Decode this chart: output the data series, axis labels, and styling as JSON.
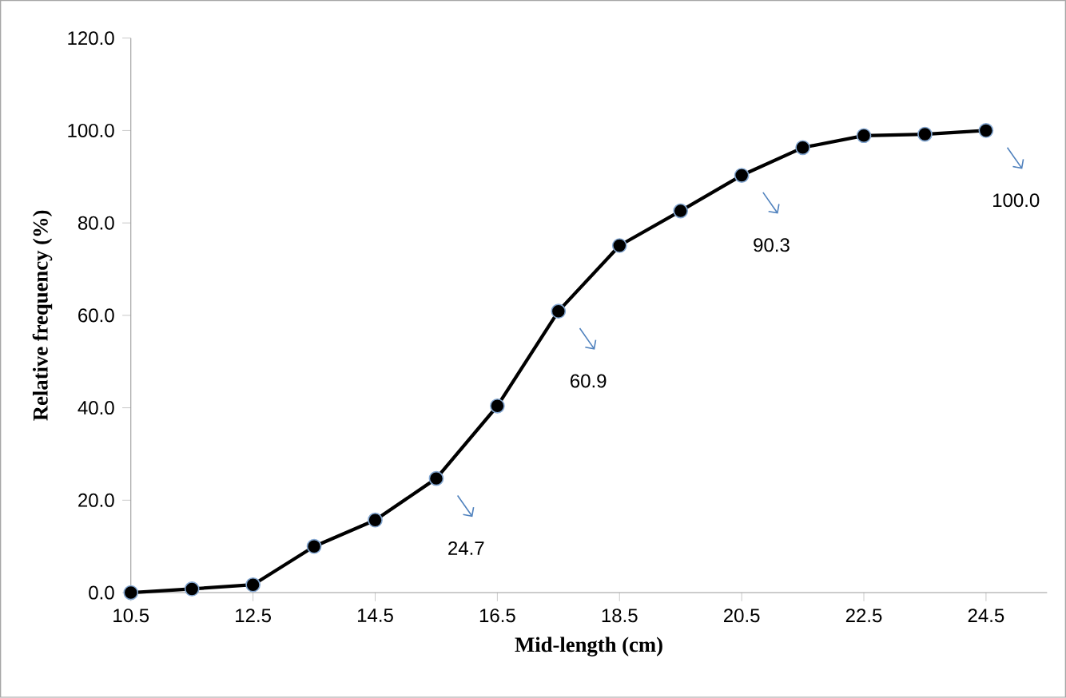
{
  "chart_data": {
    "type": "line",
    "x": [
      10.5,
      11.5,
      12.5,
      13.5,
      14.5,
      15.5,
      16.5,
      17.5,
      18.5,
      19.5,
      20.5,
      21.5,
      22.5,
      23.5,
      24.5
    ],
    "values": [
      0.0,
      0.8,
      1.7,
      10.0,
      15.7,
      24.7,
      40.4,
      60.9,
      75.1,
      82.6,
      90.3,
      96.3,
      98.9,
      99.2,
      100.0
    ],
    "value_labels": [
      null,
      null,
      null,
      null,
      null,
      "24.7",
      null,
      "60.9",
      null,
      null,
      "90.3",
      null,
      null,
      null,
      "100.0"
    ],
    "color": "#000000",
    "marker": "circle",
    "line_style": "solid",
    "xlabel": "Mid-length (cm)",
    "ylabel": "Relative frequency (%)",
    "xlim": [
      10.5,
      25.5
    ],
    "ylim": [
      0,
      120
    ],
    "xticks": [
      {
        "value": 10.5,
        "label": "10.5"
      },
      {
        "value": 12.5,
        "label": "12.5"
      },
      {
        "value": 14.5,
        "label": "14.5"
      },
      {
        "value": 16.5,
        "label": "16.5"
      },
      {
        "value": 18.5,
        "label": "18.5"
      },
      {
        "value": 20.5,
        "label": "20.5"
      },
      {
        "value": 22.5,
        "label": "22.5"
      },
      {
        "value": 24.5,
        "label": "24.5"
      }
    ],
    "yticks": [
      {
        "value": 0,
        "label": "0.0"
      },
      {
        "value": 20,
        "label": "20.0"
      },
      {
        "value": 40,
        "label": "40.0"
      },
      {
        "value": 60,
        "label": "60.0"
      },
      {
        "value": 80,
        "label": "80.0"
      },
      {
        "value": 100,
        "label": "100.0"
      },
      {
        "value": 120,
        "label": "120.0"
      }
    ],
    "grid": false
  }
}
